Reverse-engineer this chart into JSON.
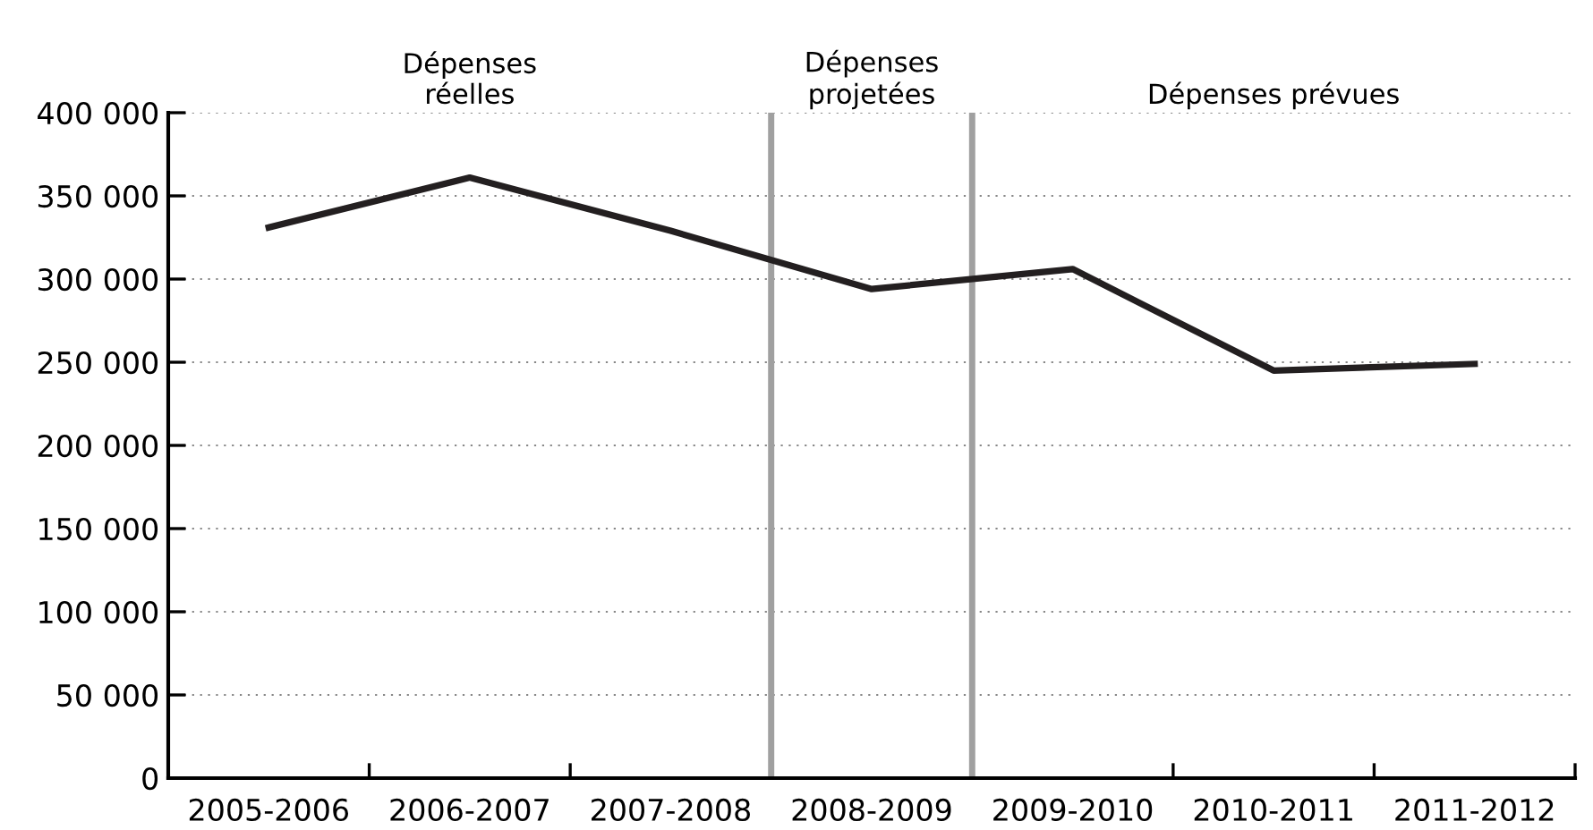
{
  "chart_data": {
    "type": "line",
    "categories": [
      "2005-2006",
      "2006-2007",
      "2007-2008",
      "2008-2009",
      "2009-2010",
      "2010-2011",
      "2011-2012"
    ],
    "series": [
      {
        "color": "#231f20",
        "values": [
          331000,
          361000,
          329000,
          294000,
          306000,
          245000,
          249000
        ]
      }
    ],
    "ylim": [
      0,
      400000
    ],
    "yticks": [
      {
        "value": 0,
        "label": "0"
      },
      {
        "value": 50000,
        "label": "50 000"
      },
      {
        "value": 100000,
        "label": "100 000"
      },
      {
        "value": 150000,
        "label": "150 000"
      },
      {
        "value": 200000,
        "label": "200 000"
      },
      {
        "value": 250000,
        "label": "250 000"
      },
      {
        "value": 300000,
        "label": "300 000"
      },
      {
        "value": 350000,
        "label": "350 000"
      },
      {
        "value": 400000,
        "label": "400 000"
      }
    ],
    "annotations": [
      "Dépenses\nréelles",
      "Dépenses\nprojetées",
      "Dépenses prévues"
    ],
    "grid": "y",
    "legend": false,
    "marker": "none",
    "line_style": "solid"
  }
}
